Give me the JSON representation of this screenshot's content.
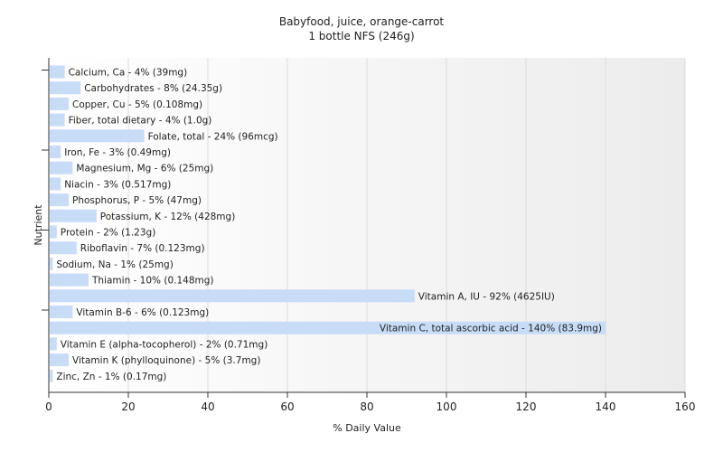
{
  "chart_data": {
    "type": "bar",
    "orientation": "horizontal",
    "title": "Babyfood, juice, orange-carrot",
    "subtitle": "1 bottle NFS (246g)",
    "xlabel": "% Daily Value",
    "ylabel": "Nutrient",
    "xlim": [
      0,
      160
    ],
    "xticks": [
      0,
      20,
      40,
      60,
      80,
      100,
      120,
      140,
      160
    ],
    "grid": true,
    "bar_color": "#c6dcf7",
    "categories": [
      "Calcium, Ca",
      "Carbohydrates",
      "Copper, Cu",
      "Fiber, total dietary",
      "Folate, total",
      "Iron, Fe",
      "Magnesium, Mg",
      "Niacin",
      "Phosphorus, P",
      "Potassium, K",
      "Protein",
      "Riboflavin",
      "Sodium, Na",
      "Thiamin",
      "Vitamin A, IU",
      "Vitamin B-6",
      "Vitamin C, total ascorbic acid",
      "Vitamin E (alpha-tocopherol)",
      "Vitamin K (phylloquinone)",
      "Zinc, Zn"
    ],
    "values": [
      4,
      8,
      5,
      4,
      24,
      3,
      6,
      3,
      5,
      12,
      2,
      7,
      1,
      10,
      92,
      6,
      140,
      2,
      5,
      1
    ],
    "labels": [
      "Calcium, Ca - 4% (39mg)",
      "Carbohydrates - 8% (24.35g)",
      "Copper, Cu - 5% (0.108mg)",
      "Fiber, total dietary - 4% (1.0g)",
      "Folate, total - 24% (96mcg)",
      "Iron, Fe - 3% (0.49mg)",
      "Magnesium, Mg - 6% (25mg)",
      "Niacin - 3% (0.517mg)",
      "Phosphorus, P - 5% (47mg)",
      "Potassium, K - 12% (428mg)",
      "Protein - 2% (1.23g)",
      "Riboflavin - 7% (0.123mg)",
      "Sodium, Na - 1% (25mg)",
      "Thiamin - 10% (0.148mg)",
      "Vitamin A, IU - 92% (4625IU)",
      "Vitamin B-6 - 6% (0.123mg)",
      "Vitamin C, total ascorbic acid - 140% (83.9mg)",
      "Vitamin E (alpha-tocopherol) - 2% (0.71mg)",
      "Vitamin K (phylloquinone) - 5% (3.7mg)",
      "Zinc, Zn - 1% (0.17mg)"
    ]
  }
}
